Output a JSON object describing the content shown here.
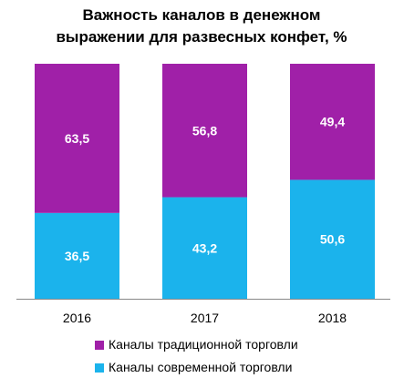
{
  "colors": {
    "traditional": "#A020A8",
    "modern": "#1BB3EC",
    "axis": "#888888"
  },
  "chart_data": {
    "type": "bar",
    "stacked": true,
    "title_lines": [
      "Важность каналов в денежном",
      "выражении для развесных конфет, %"
    ],
    "categories": [
      "2016",
      "2017",
      "2018"
    ],
    "series": [
      {
        "key": "modern",
        "name": "Каналы современной торговли",
        "values": [
          36.5,
          43.2,
          50.6
        ],
        "labels": [
          "36,5",
          "43,2",
          "50,6"
        ]
      },
      {
        "key": "traditional",
        "name": "Каналы традиционной торговли",
        "values": [
          63.5,
          56.8,
          49.4
        ],
        "labels": [
          "63,5",
          "56,8",
          "49,4"
        ]
      }
    ],
    "ylim": [
      0,
      100
    ],
    "grid": false,
    "legend_position": "bottom",
    "legend_order": [
      "traditional",
      "modern"
    ]
  }
}
